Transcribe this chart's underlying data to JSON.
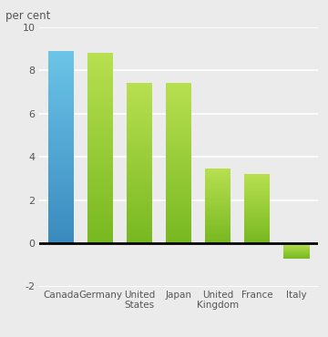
{
  "categories": [
    "Canada",
    "Germany",
    "United\nStates",
    "Japan",
    "United\nKingdom",
    "France",
    "Italy"
  ],
  "values": [
    8.9,
    8.8,
    7.4,
    7.4,
    3.45,
    3.2,
    -0.7
  ],
  "bar_colors_top": [
    "#6cc5e8",
    "#b8e050",
    "#b8e050",
    "#b8e050",
    "#b8e050",
    "#b8e050",
    "#b8e050"
  ],
  "bar_colors_bottom": [
    "#3a8abf",
    "#78b820",
    "#78b820",
    "#78b820",
    "#78b820",
    "#78b820",
    "#78b820"
  ],
  "ylabel": "per cent",
  "ylim": [
    -2,
    10
  ],
  "yticks": [
    -2,
    0,
    2,
    4,
    6,
    8,
    10
  ],
  "background_color": "#ebebeb",
  "grid_color": "#ffffff",
  "axis_label_color": "#555555",
  "bar_width": 0.65
}
